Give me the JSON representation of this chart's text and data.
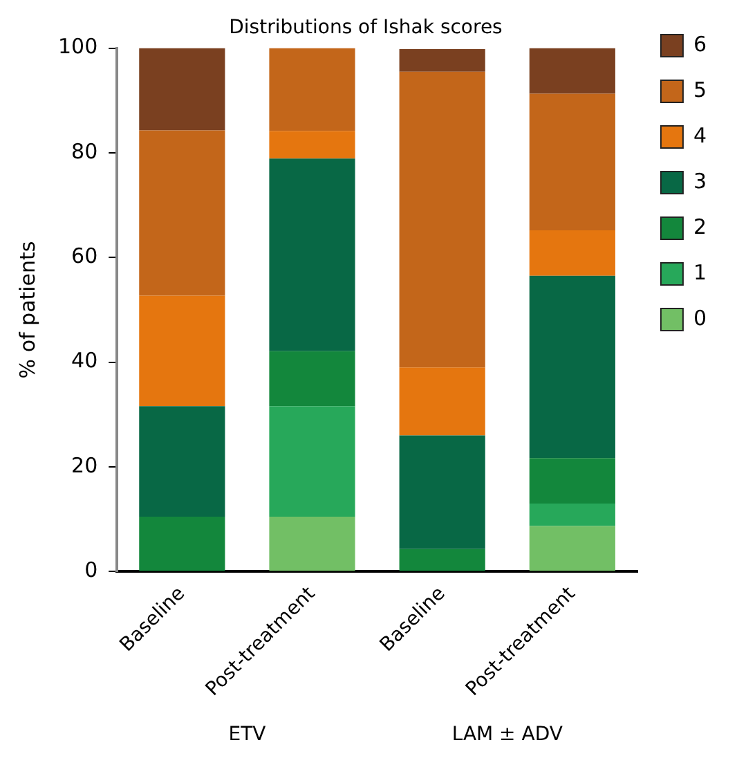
{
  "chart_data": {
    "type": "bar",
    "title": "Distributions of Ishak scores",
    "ylabel": "% of patients",
    "categories": [
      "Baseline",
      "Post-treatment",
      "Baseline",
      "Post-treatment"
    ],
    "annotations": [
      "ETV",
      "LAM ± ADV"
    ],
    "stacked": true,
    "ylim": [
      0,
      100
    ],
    "yticks": [
      0,
      20,
      40,
      60,
      80,
      100
    ],
    "grid": false,
    "legend": "right",
    "series": [
      {
        "name": "0",
        "color": "#72bf65",
        "values": [
          0,
          10.5,
          0,
          8.7
        ]
      },
      {
        "name": "1",
        "color": "#27a85a",
        "values": [
          0,
          21.1,
          0,
          4.3
        ]
      },
      {
        "name": "2",
        "color": "#13873c",
        "values": [
          10.5,
          10.5,
          4.3,
          8.7
        ]
      },
      {
        "name": "3",
        "color": "#086845",
        "values": [
          21.1,
          36.8,
          21.7,
          34.8
        ]
      },
      {
        "name": "4",
        "color": "#e5760f",
        "values": [
          21.1,
          5.3,
          13.0,
          8.7
        ]
      },
      {
        "name": "5",
        "color": "#c3661a",
        "values": [
          31.6,
          15.8,
          56.5,
          26.1
        ]
      },
      {
        "name": "6",
        "color": "#7a4020",
        "values": [
          15.7,
          0,
          4.3,
          8.7
        ]
      }
    ]
  }
}
